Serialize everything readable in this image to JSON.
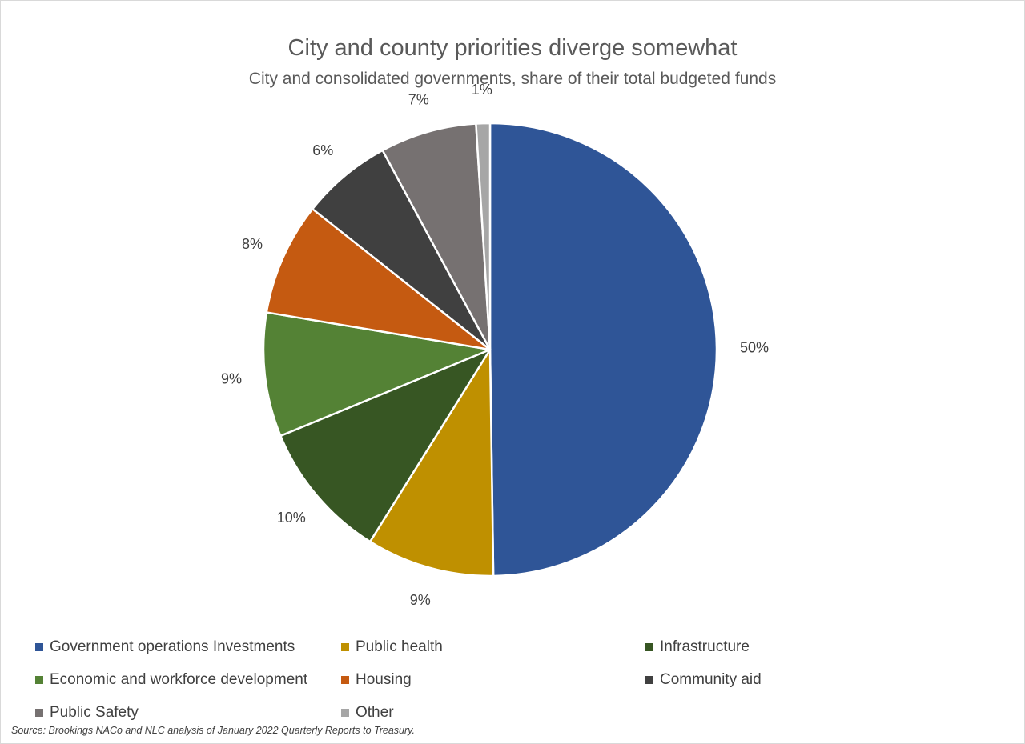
{
  "chart_data": {
    "type": "pie",
    "title": "City and county priorities diverge somewhat",
    "subtitle": "City and consolidated governments, share of their total budgeted funds",
    "slices": [
      {
        "name": "Government operations Investments",
        "value": 50,
        "label": "50%",
        "color": "#2f5597"
      },
      {
        "name": "Public health",
        "value": 9,
        "label": "9%",
        "color": "#bf9000"
      },
      {
        "name": "Infrastructure",
        "value": 10,
        "label": "10%",
        "color": "#375623"
      },
      {
        "name": "Economic and workforce development",
        "value": 9,
        "label": "9%",
        "color": "#548235"
      },
      {
        "name": "Housing",
        "value": 8,
        "label": "8%",
        "color": "#c55a11"
      },
      {
        "name": "Community aid",
        "value": 6,
        "label": "6%",
        "color": "#404040"
      },
      {
        "name": "Public Safety",
        "value": 7,
        "label": "7%",
        "color": "#767171"
      },
      {
        "name": "Other",
        "value": 1,
        "label": "1%",
        "color": "#a6a6a6"
      }
    ],
    "legend_position": "bottom",
    "source": "Source: Brookings NACo and NLC analysis of January 2022 Quarterly Reports to Treasury."
  }
}
